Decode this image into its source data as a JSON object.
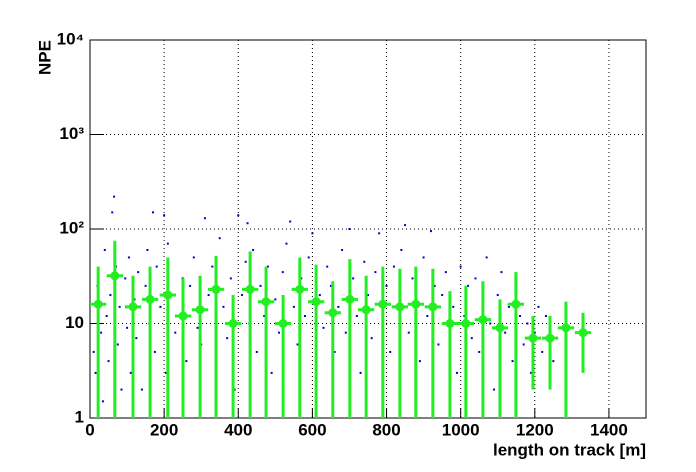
{
  "chart_data": {
    "type": "scatter_profile",
    "x_label": "length on track [m]",
    "y_label": "NPE",
    "log_y": true,
    "grid": true,
    "xlim": [
      0,
      1500
    ],
    "ylim": [
      1,
      10000
    ],
    "xticks": [
      0,
      200,
      400,
      600,
      800,
      1000,
      1200,
      1400
    ],
    "yticks": [
      1,
      10,
      {
        "value": 100,
        "label": "10²"
      },
      {
        "value": 1000,
        "label": "10³"
      },
      {
        "value": 10000,
        "label": "10⁴"
      }
    ],
    "scatter": {
      "color": "#0000cc",
      "x": [
        10,
        15,
        20,
        30,
        35,
        40,
        45,
        50,
        55,
        60,
        65,
        70,
        75,
        80,
        85,
        95,
        100,
        105,
        110,
        120,
        125,
        130,
        140,
        150,
        155,
        160,
        170,
        175,
        180,
        190,
        200,
        205,
        210,
        220,
        230,
        240,
        250,
        260,
        270,
        280,
        290,
        300,
        310,
        320,
        330,
        340,
        350,
        360,
        370,
        380,
        390,
        400,
        410,
        420,
        425,
        430,
        440,
        450,
        460,
        470,
        480,
        490,
        500,
        510,
        520,
        530,
        540,
        550,
        560,
        570,
        580,
        590,
        600,
        610,
        620,
        630,
        640,
        650,
        660,
        670,
        680,
        690,
        700,
        710,
        720,
        730,
        740,
        750,
        760,
        770,
        780,
        790,
        800,
        810,
        820,
        830,
        840,
        850,
        860,
        870,
        880,
        890,
        900,
        910,
        920,
        930,
        940,
        950,
        960,
        970,
        980,
        990,
        1000,
        1010,
        1020,
        1030,
        1040,
        1050,
        1060,
        1070,
        1080,
        1090,
        1100,
        1110,
        1120,
        1130,
        1140,
        1150,
        1160,
        1170,
        1180,
        1190,
        1200,
        1210,
        1220,
        1230,
        1240,
        1250
      ],
      "values": [
        5,
        3,
        25,
        8,
        1.5,
        60,
        12,
        4,
        20,
        150,
        220,
        40,
        6,
        15,
        2,
        30,
        9,
        50,
        3,
        18,
        7,
        35,
        2,
        25,
        60,
        10,
        150,
        5,
        40,
        15,
        140,
        3,
        70,
        20,
        8,
        12,
        30,
        4,
        25,
        50,
        9,
        6,
        130,
        20,
        40,
        3,
        80,
        15,
        7,
        30,
        2,
        140,
        20,
        45,
        115,
        10,
        60,
        5,
        25,
        12,
        40,
        3,
        18,
        8,
        35,
        70,
        120,
        15,
        6,
        30,
        12,
        50,
        90,
        4,
        20,
        9,
        40,
        25,
        5,
        15,
        60,
        8,
        100,
        30,
        12,
        3,
        45,
        20,
        7,
        35,
        90,
        10,
        25,
        5,
        40,
        15,
        60,
        110,
        8,
        30,
        18,
        4,
        50,
        12,
        95,
        25,
        6,
        20,
        35,
        9,
        15,
        3,
        40,
        12,
        25,
        7,
        30,
        5,
        18,
        50,
        10,
        2,
        20,
        35,
        8,
        15,
        4,
        30,
        12,
        6,
        10,
        3,
        8,
        15,
        5,
        12,
        7,
        4
      ]
    },
    "profile": {
      "color": "#22ee22",
      "xerr": 22,
      "x": [
        22,
        67,
        116,
        162,
        210,
        251,
        297,
        340,
        386,
        432,
        475,
        521,
        566,
        610,
        655,
        701,
        745,
        790,
        836,
        879,
        925,
        971,
        1014,
        1060,
        1106,
        1149,
        1195,
        1241,
        1284,
        1330
      ],
      "values": [
        16,
        32,
        15,
        18,
        20,
        12,
        14,
        23,
        10,
        23,
        17,
        10,
        23,
        17,
        13,
        18,
        14,
        16,
        15,
        16,
        15,
        10,
        10,
        11,
        9,
        16,
        7,
        7,
        9,
        8
      ],
      "errors": [
        24,
        43,
        17,
        22,
        30,
        18,
        18,
        29,
        10,
        35,
        23,
        10,
        27,
        25,
        15,
        30,
        18,
        24,
        23,
        24,
        23,
        12,
        15,
        17,
        9,
        19,
        5,
        5,
        8,
        5
      ]
    }
  }
}
